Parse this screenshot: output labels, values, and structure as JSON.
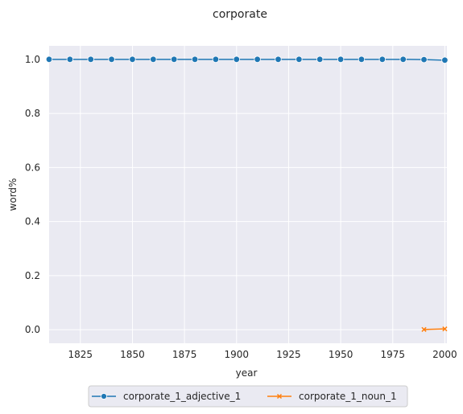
{
  "chart_data": {
    "type": "line",
    "title": "corporate",
    "xlabel": "year",
    "ylabel": "word%",
    "xlim": [
      1810,
      2001
    ],
    "ylim": [
      -0.05,
      1.05
    ],
    "xticks": [
      1825,
      1850,
      1875,
      1900,
      1925,
      1950,
      1975,
      2000
    ],
    "yticks": [
      0.0,
      0.2,
      0.4,
      0.6,
      0.8,
      1.0
    ],
    "grid": true,
    "legend_position": "bottom-center",
    "series": [
      {
        "name": "corporate_1_adjective_1",
        "color": "#1f77b4",
        "marker": "circle",
        "x": [
          1810,
          1820,
          1830,
          1840,
          1850,
          1860,
          1870,
          1880,
          1890,
          1900,
          1910,
          1920,
          1930,
          1940,
          1950,
          1960,
          1970,
          1980,
          1990,
          2000
        ],
        "y": [
          1.0,
          1.0,
          1.0,
          1.0,
          1.0,
          1.0,
          1.0,
          1.0,
          1.0,
          1.0,
          1.0,
          1.0,
          1.0,
          1.0,
          1.0,
          1.0,
          1.0,
          1.0,
          0.999,
          0.997
        ]
      },
      {
        "name": "corporate_1_noun_1",
        "color": "#ff7f0e",
        "marker": "x",
        "x": [
          1990,
          2000
        ],
        "y": [
          0.001,
          0.003
        ]
      }
    ]
  }
}
